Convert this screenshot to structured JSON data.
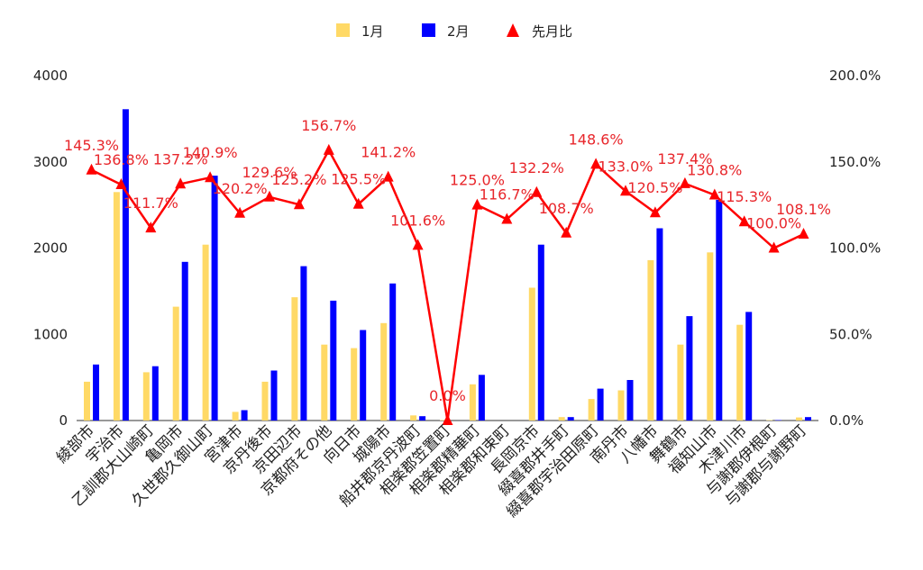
{
  "chart_data": {
    "type": "bar",
    "categories": [
      "綾部市",
      "宇治市",
      "乙訓郡大山崎町",
      "亀岡市",
      "久世郡久御山町",
      "宮津市",
      "京丹後市",
      "京田辺市",
      "京都府その他",
      "向日市",
      "城陽市",
      "船井郡京丹波町",
      "相楽郡笠置町",
      "相楽郡精華町",
      "相楽郡和束町",
      "長岡京市",
      "綴喜郡井手町",
      "綴喜郡宇治田原町",
      "南丹市",
      "八幡市",
      "舞鶴市",
      "福知山市",
      "木津川市",
      "与謝郡伊根町",
      "与謝郡与謝野町"
    ],
    "series": [
      {
        "name": "1月",
        "type": "bar",
        "axis": "left",
        "color": "#ffd966",
        "values": [
          450,
          2650,
          560,
          1320,
          2040,
          100,
          450,
          1430,
          880,
          840,
          1130,
          60,
          5,
          420,
          0,
          1540,
          40,
          250,
          350,
          1860,
          880,
          1950,
          1110,
          5,
          35
        ]
      },
      {
        "name": "2月",
        "type": "bar",
        "axis": "left",
        "color": "#0000ff",
        "values": [
          650,
          3610,
          630,
          1840,
          2840,
          120,
          580,
          1790,
          1390,
          1050,
          1590,
          50,
          0,
          530,
          0,
          2040,
          40,
          370,
          470,
          2230,
          1210,
          2560,
          1260,
          5,
          40
        ]
      },
      {
        "name": "先月比",
        "type": "line",
        "axis": "right",
        "color": "#ff0000",
        "marker": "triangle",
        "values": [
          145.3,
          136.8,
          111.7,
          137.2,
          140.9,
          120.2,
          129.6,
          125.2,
          156.7,
          125.5,
          141.2,
          101.6,
          0.0,
          125.0,
          116.7,
          132.2,
          108.7,
          148.6,
          133.0,
          120.5,
          137.4,
          130.8,
          115.3,
          100.0,
          108.1
        ],
        "labels": [
          "145.3%",
          "136.8%",
          "111.7%",
          "137.2%",
          "140.9%",
          "120.2%",
          "129.6%",
          "125.2%",
          "156.7%",
          "125.5%",
          "141.2%",
          "101.6%",
          "0.0%",
          "125.0%",
          "116.7%",
          "132.2%",
          "108.7%",
          "148.6%",
          "133.0%",
          "120.5%",
          "137.4%",
          "130.8%",
          "115.3%",
          "100.0%",
          "108.1%"
        ]
      }
    ],
    "y_left": {
      "range": [
        0,
        4000
      ],
      "ticks": [
        "0",
        "1000",
        "2000",
        "3000",
        "4000"
      ],
      "tick_values": [
        0,
        1000,
        2000,
        3000,
        4000
      ]
    },
    "y_right": {
      "range": [
        0,
        200
      ],
      "ticks": [
        "0.0%",
        "50.0%",
        "100.0%",
        "150.0%",
        "200.0%"
      ],
      "tick_values": [
        0,
        50,
        100,
        150,
        200
      ]
    },
    "grid": false,
    "legend": {
      "position": "top",
      "items": [
        {
          "label": "1月",
          "color": "#ffd966",
          "shape": "square"
        },
        {
          "label": "2月",
          "color": "#0000ff",
          "shape": "square"
        },
        {
          "label": "先月比",
          "color": "#ff0000",
          "shape": "triangle"
        }
      ]
    }
  }
}
